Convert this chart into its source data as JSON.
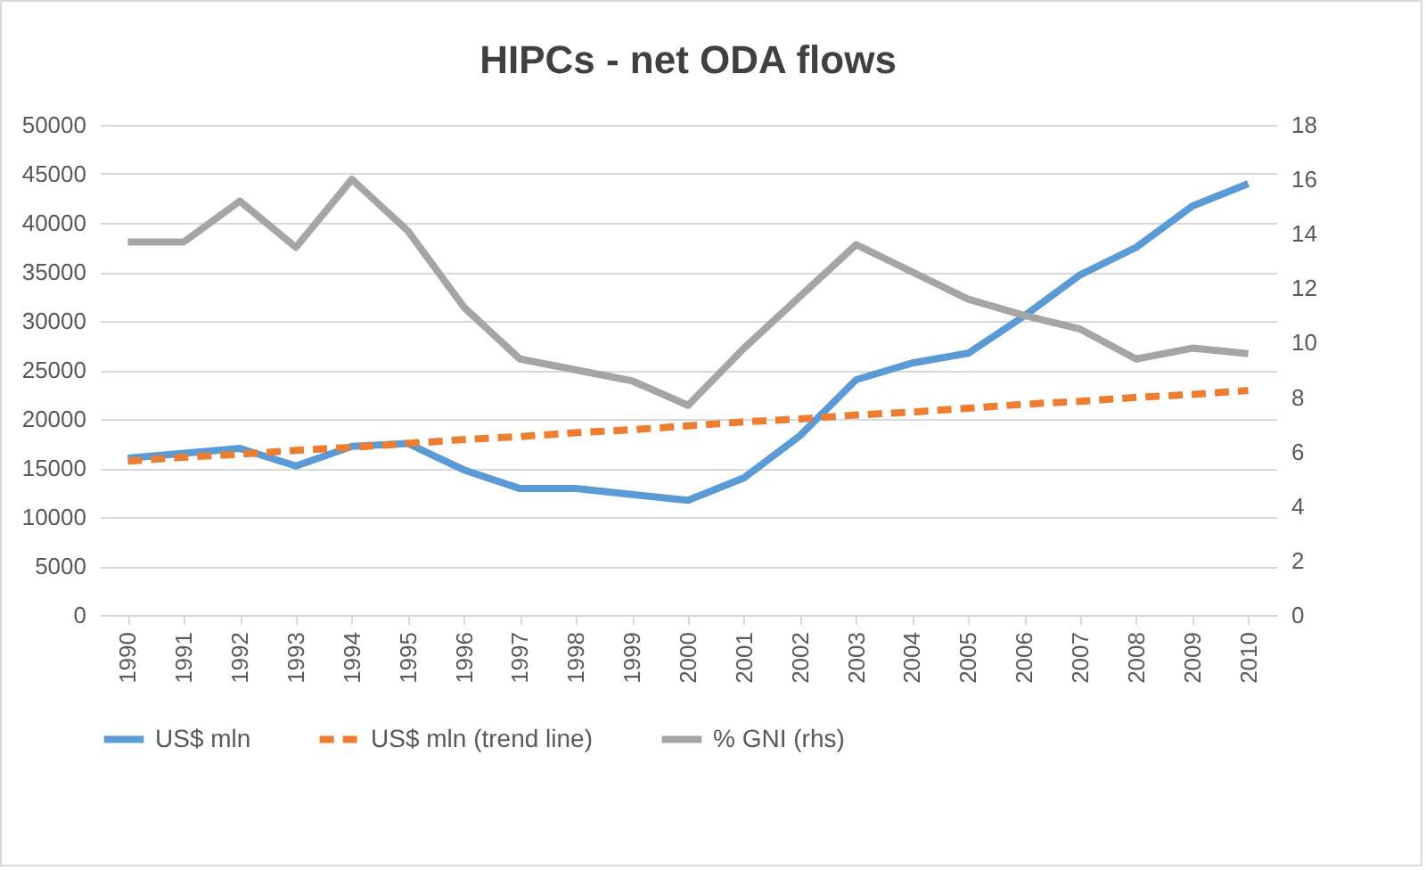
{
  "chart_data": {
    "type": "line",
    "title": "HIPCs - net ODA flows",
    "categories": [
      "1990",
      "1991",
      "1992",
      "1993",
      "1994",
      "1995",
      "1996",
      "1997",
      "1998",
      "1999",
      "2000",
      "2001",
      "2002",
      "2003",
      "2004",
      "2005",
      "2006",
      "2007",
      "2008",
      "2009",
      "2010"
    ],
    "series": [
      {
        "name": "US$ mln",
        "color": "#5b9bd5",
        "line_style": "solid",
        "values": [
          16000,
          16500,
          17000,
          15200,
          17200,
          17500,
          14800,
          12900,
          12900,
          12300,
          11700,
          14000,
          18300,
          24000,
          25700,
          26700,
          30500,
          34700,
          37500,
          41700,
          44000
        ]
      },
      {
        "name": "US$ mln (trend line)",
        "color": "#ed7d31",
        "line_style": "dashed",
        "values": [
          15700,
          16100,
          16400,
          16800,
          17100,
          17500,
          17900,
          18200,
          18600,
          18900,
          19300,
          19700,
          20000,
          20400,
          20700,
          21100,
          21500,
          21800,
          22200,
          22500,
          22900
        ]
      },
      {
        "name": "% GNI (rhs)",
        "color": "#a5a5a5",
        "line_style": "solid",
        "axis": "y2",
        "values": [
          13.7,
          13.7,
          15.2,
          13.5,
          16.0,
          14.1,
          11.3,
          9.4,
          9.0,
          8.6,
          7.7,
          9.8,
          11.7,
          13.6,
          12.6,
          11.6,
          11.0,
          10.5,
          9.4,
          9.8,
          9.6
        ]
      }
    ],
    "ylim": [
      0,
      50000
    ],
    "yticks": [
      0,
      5000,
      10000,
      15000,
      20000,
      25000,
      30000,
      35000,
      40000,
      45000,
      50000
    ],
    "y2lim": [
      0,
      18
    ],
    "y2ticks": [
      0,
      2,
      4,
      6,
      8,
      10,
      12,
      14,
      16,
      18
    ],
    "grid": "y",
    "legend": "bottom"
  }
}
